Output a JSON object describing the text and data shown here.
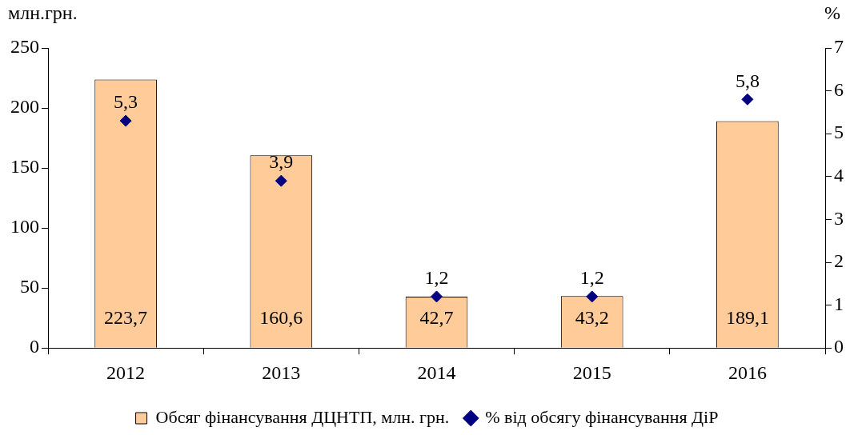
{
  "chart_data": {
    "type": "bar",
    "ylabel": "млн.грн.",
    "y2label": "%",
    "categories": [
      "2012",
      "2013",
      "2014",
      "2015",
      "2016"
    ],
    "series": [
      {
        "name": "Обсяг фінансування ДЦНТП, млн. грн.",
        "color": "#ffcc99",
        "values": [
          223.7,
          160.6,
          42.7,
          43.2,
          189.1
        ],
        "value_labels": [
          "223,7",
          "160,6",
          "42,7",
          "43,2",
          "189,1"
        ]
      },
      {
        "name": "% від обсягу фінансування ДіР",
        "type": "scatter",
        "axis": "y2",
        "marker": "diamond",
        "color": "#000080",
        "values": [
          5.3,
          3.9,
          1.2,
          1.2,
          5.8
        ],
        "value_labels": [
          "5,3",
          "3,9",
          "1,2",
          "1,2",
          "5,8"
        ]
      }
    ],
    "ylim": [
      0,
      250
    ],
    "yticks": [
      0,
      50,
      100,
      150,
      200,
      250
    ],
    "y2lim": [
      0,
      7
    ],
    "y2ticks": [
      0,
      1,
      2,
      3,
      4,
      5,
      6,
      7
    ],
    "grid": false,
    "legend": "bottom"
  }
}
